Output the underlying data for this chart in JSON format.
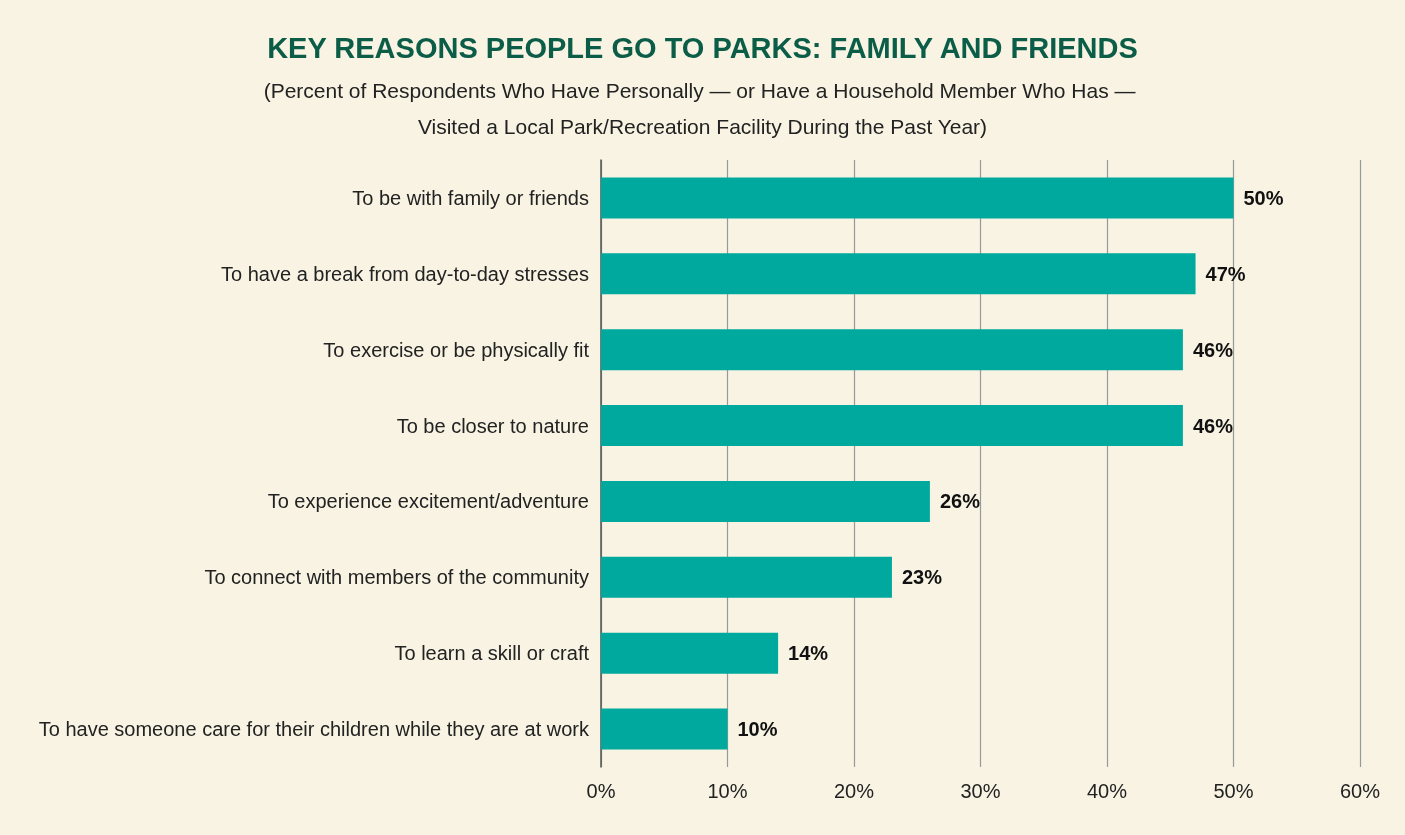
{
  "chart_data": {
    "type": "bar",
    "orientation": "horizontal",
    "title": "KEY REASONS PEOPLE GO TO PARKS: FAMILY AND FRIENDS",
    "subtitle": "(Percent of Respondents Who Have Personally — or Have a Household Member Who Has — Visited a Local Park/Recreation Facility During the Past Year)",
    "categories": [
      "To be with family or friends",
      "To have a break from day-to-day stresses",
      "To exercise or be physically fit",
      "To be closer to nature",
      "To experience excitement/adventure",
      "To connect with members of the community",
      "To learn a skill or craft",
      "To have someone care for their children while they are at work"
    ],
    "values": [
      50,
      47,
      46,
      46,
      26,
      23,
      14,
      10
    ],
    "value_labels": [
      "50%",
      "47%",
      "46%",
      "46%",
      "26%",
      "23%",
      "14%",
      "10%"
    ],
    "color": "#00a99d",
    "xlim": [
      0,
      60
    ],
    "xticks": [
      {
        "value": 0,
        "label": "0%"
      },
      {
        "value": 10,
        "label": "10%"
      },
      {
        "value": 20,
        "label": "20%"
      },
      {
        "value": 30,
        "label": "30%"
      },
      {
        "value": 40,
        "label": "40%"
      },
      {
        "value": 50,
        "label": "50%"
      },
      {
        "value": 60,
        "label": "60%"
      }
    ],
    "grid": "x"
  }
}
